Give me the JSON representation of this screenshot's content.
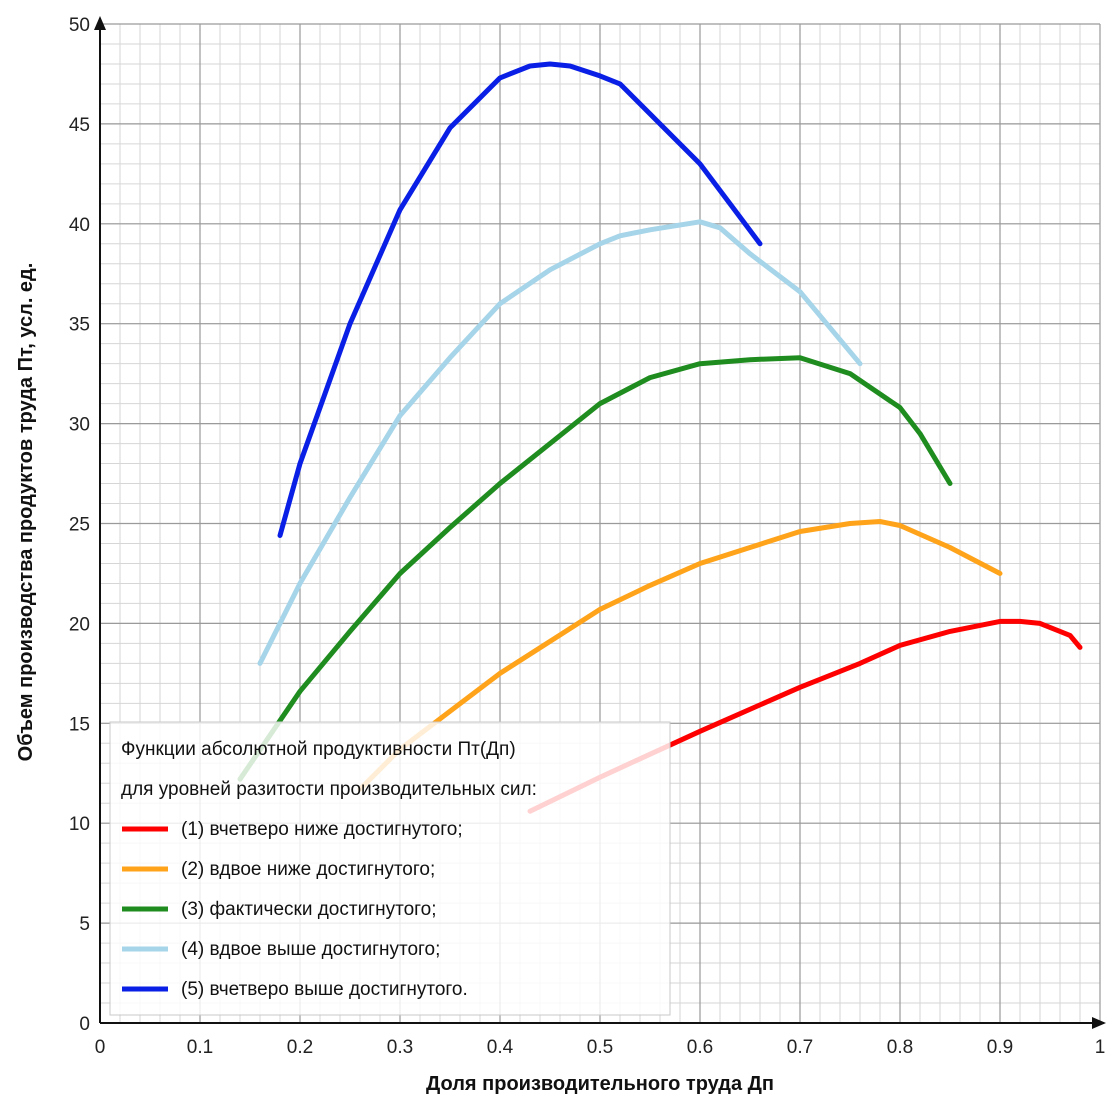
{
  "chart_data": {
    "type": "line",
    "title": "",
    "xlabel": "Доля производительного труда Дп",
    "ylabel": "Объем производства продуктов труда Пт, усл. ед.",
    "xlim": [
      0,
      1
    ],
    "ylim": [
      0,
      50
    ],
    "x_ticks": [
      "0",
      "0.1",
      "0.2",
      "0.3",
      "0.4",
      "0.5",
      "0.6",
      "0.7",
      "0.8",
      "0.9",
      "1"
    ],
    "y_ticks": [
      "0",
      "5",
      "10",
      "15",
      "20",
      "25",
      "30",
      "35",
      "40",
      "45",
      "50"
    ],
    "grid": true,
    "legend": {
      "placement": "bottom-left",
      "title_lines": [
        "Функции абсолютной продуктивности Пт(Дп)",
        "для уровней разитости производительных сил:"
      ]
    },
    "series": [
      {
        "name": "(1) вчетверо ниже достигнутого;",
        "color": "#ff0000",
        "x": [
          0.43,
          0.5,
          0.6,
          0.7,
          0.76,
          0.8,
          0.85,
          0.9,
          0.92,
          0.94,
          0.97,
          0.98
        ],
        "y": [
          10.6,
          12.3,
          14.6,
          16.8,
          18.0,
          18.9,
          19.6,
          20.1,
          20.1,
          20.0,
          19.4,
          18.8
        ]
      },
      {
        "name": "(2) вдвое ниже достигнутого;",
        "color": "#ffa31a",
        "x": [
          0.26,
          0.3,
          0.35,
          0.4,
          0.45,
          0.5,
          0.55,
          0.6,
          0.65,
          0.7,
          0.75,
          0.78,
          0.8,
          0.85,
          0.9
        ],
        "y": [
          11.7,
          13.7,
          15.6,
          17.5,
          19.1,
          20.7,
          21.9,
          23.0,
          23.8,
          24.6,
          25.0,
          25.1,
          24.9,
          23.8,
          22.5
        ]
      },
      {
        "name": "(3) фактически достигнутого;",
        "color": "#1f8c1f",
        "x": [
          0.14,
          0.2,
          0.25,
          0.3,
          0.35,
          0.4,
          0.45,
          0.5,
          0.55,
          0.6,
          0.65,
          0.7,
          0.75,
          0.8,
          0.82,
          0.85
        ],
        "y": [
          12.2,
          16.6,
          19.6,
          22.5,
          24.8,
          27.0,
          29.0,
          31.0,
          32.3,
          33.0,
          33.2,
          33.3,
          32.5,
          30.8,
          29.5,
          27.0
        ]
      },
      {
        "name": "(4) вдвое выше достигнутого;",
        "color": "#a6d4e8",
        "x": [
          0.16,
          0.2,
          0.25,
          0.3,
          0.35,
          0.4,
          0.45,
          0.5,
          0.52,
          0.55,
          0.6,
          0.62,
          0.65,
          0.7,
          0.73,
          0.76
        ],
        "y": [
          18.0,
          22.0,
          26.3,
          30.4,
          33.3,
          36.0,
          37.7,
          39.0,
          39.4,
          39.7,
          40.1,
          39.8,
          38.5,
          36.6,
          34.8,
          33.0
        ]
      },
      {
        "name": "(5) вчетверо выше достигнутого.",
        "color": "#0a1fe6",
        "x": [
          0.18,
          0.2,
          0.25,
          0.3,
          0.35,
          0.4,
          0.43,
          0.45,
          0.47,
          0.5,
          0.52,
          0.55,
          0.6,
          0.63,
          0.66
        ],
        "y": [
          24.4,
          28.0,
          35.0,
          40.7,
          44.8,
          47.3,
          47.9,
          48.0,
          47.9,
          47.4,
          47.0,
          45.5,
          43.0,
          41.0,
          39.0
        ]
      }
    ]
  }
}
